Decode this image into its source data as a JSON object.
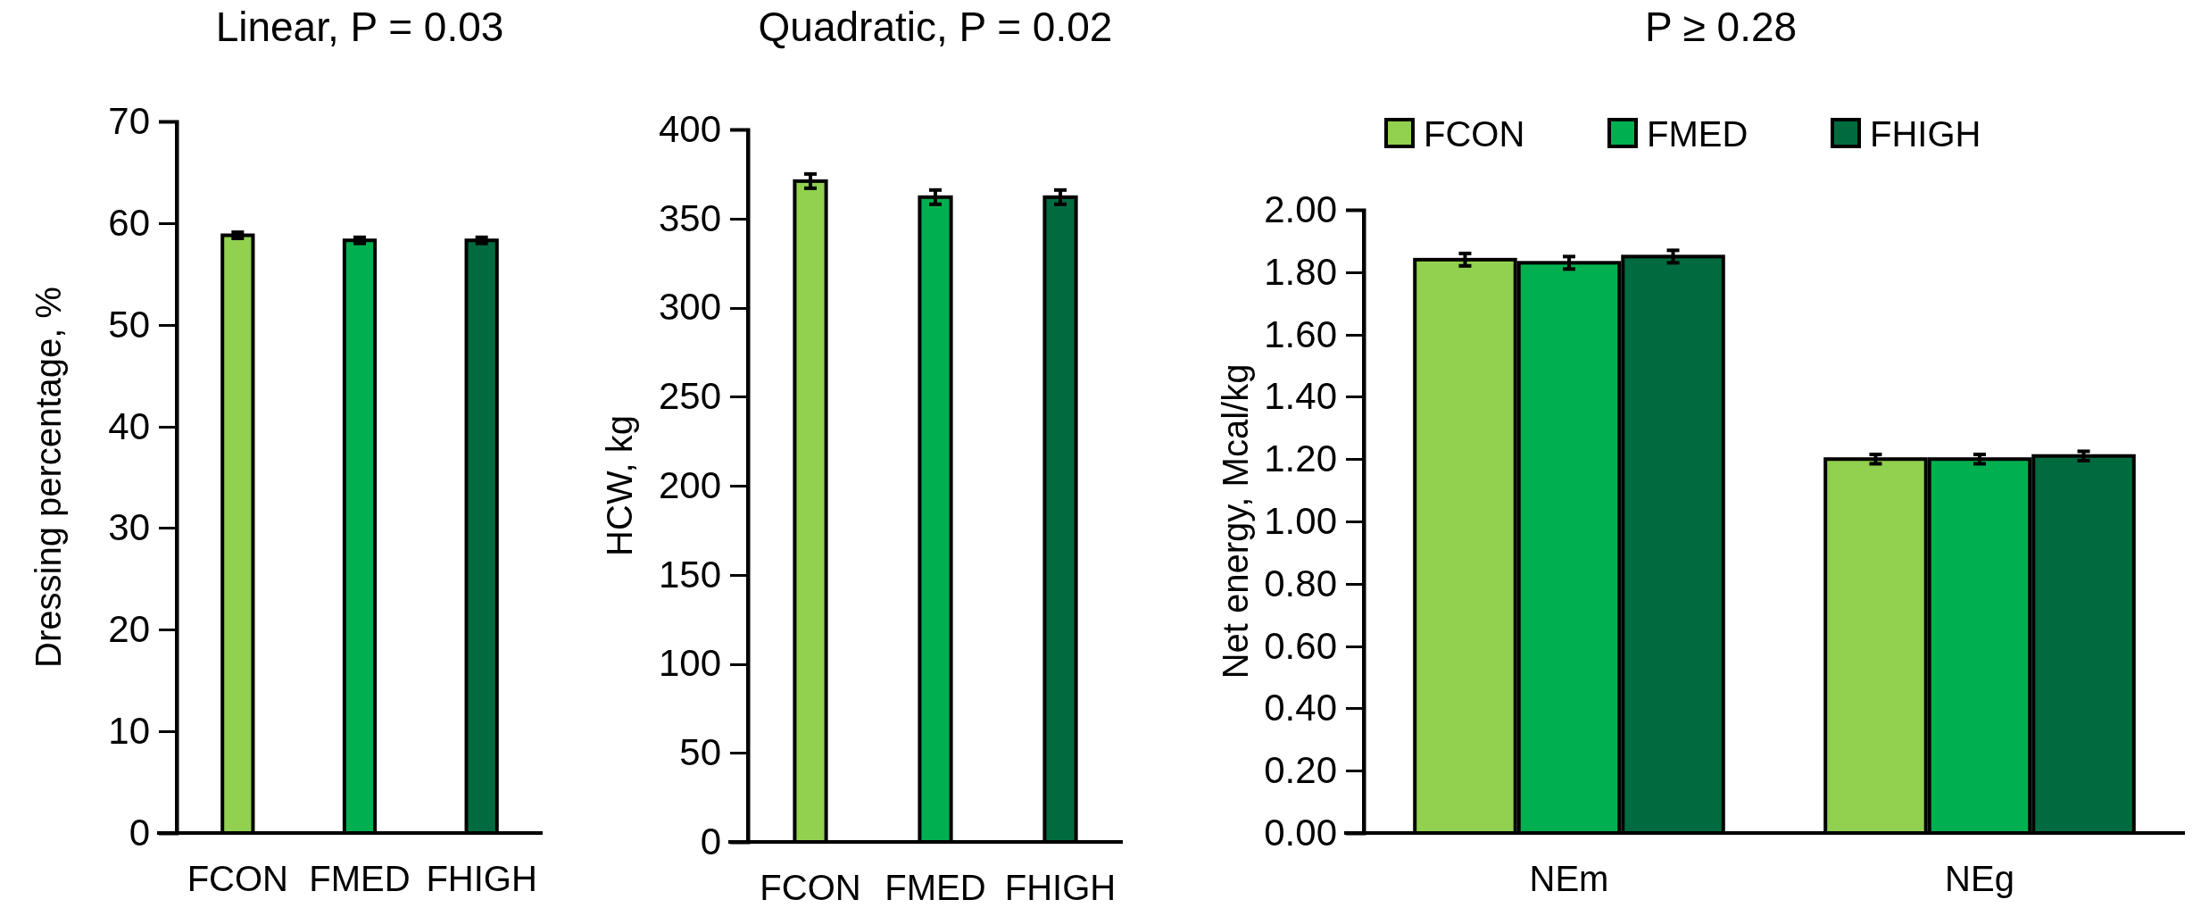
{
  "chart_data": [
    {
      "type": "bar",
      "title": "Linear, P = 0.03",
      "ylabel": "Dressing percentage, %",
      "categories": [
        "FCON",
        "FMED",
        "FHIGH"
      ],
      "values": [
        58.8,
        58.3,
        58.3
      ],
      "errors": [
        0.3,
        0.3,
        0.3
      ],
      "colors": [
        "#92d050",
        "#00b050",
        "#006b3f"
      ],
      "ylim": [
        0,
        70
      ],
      "yticks": [
        0,
        10,
        20,
        30,
        40,
        50,
        60,
        70
      ],
      "grid": false,
      "legend": false
    },
    {
      "type": "bar",
      "title": "Quadratic, P = 0.02",
      "ylabel": "HCW, kg",
      "categories": [
        "FCON",
        "FMED",
        "FHIGH"
      ],
      "values": [
        371,
        362,
        362
      ],
      "errors": [
        4,
        4,
        4
      ],
      "colors": [
        "#92d050",
        "#00b050",
        "#006b3f"
      ],
      "ylim": [
        0,
        400
      ],
      "yticks": [
        0,
        50,
        100,
        150,
        200,
        250,
        300,
        350,
        400
      ],
      "grid": false,
      "legend": false
    },
    {
      "type": "bar",
      "title": "P ≥ 0.28",
      "ylabel": "Net energy, Mcal/kg",
      "categories": [
        "NEm",
        "NEg"
      ],
      "series": [
        {
          "name": "FCON",
          "color": "#92d050",
          "values": [
            1.84,
            1.2
          ],
          "errors": [
            0.02,
            0.015
          ]
        },
        {
          "name": "FMED",
          "color": "#00b050",
          "values": [
            1.83,
            1.2
          ],
          "errors": [
            0.02,
            0.015
          ]
        },
        {
          "name": "FHIGH",
          "color": "#006b3f",
          "values": [
            1.85,
            1.21
          ],
          "errors": [
            0.02,
            0.015
          ]
        }
      ],
      "ylim": [
        0,
        2
      ],
      "yticks": [
        {
          "value": 0,
          "label": "0.00"
        },
        {
          "value": 0.2,
          "label": "0.20"
        },
        {
          "value": 0.4,
          "label": "0.40"
        },
        {
          "value": 0.6,
          "label": "0.60"
        },
        {
          "value": 0.8,
          "label": "0.80"
        },
        {
          "value": 1,
          "label": "1.00"
        },
        {
          "value": 1.2,
          "label": "1.20"
        },
        {
          "value": 1.4,
          "label": "1.40"
        },
        {
          "value": 1.6,
          "label": "1.60"
        },
        {
          "value": 1.8,
          "label": "1.80"
        },
        {
          "value": 2,
          "label": "2.00"
        }
      ],
      "grid": false,
      "legend": "top"
    }
  ]
}
